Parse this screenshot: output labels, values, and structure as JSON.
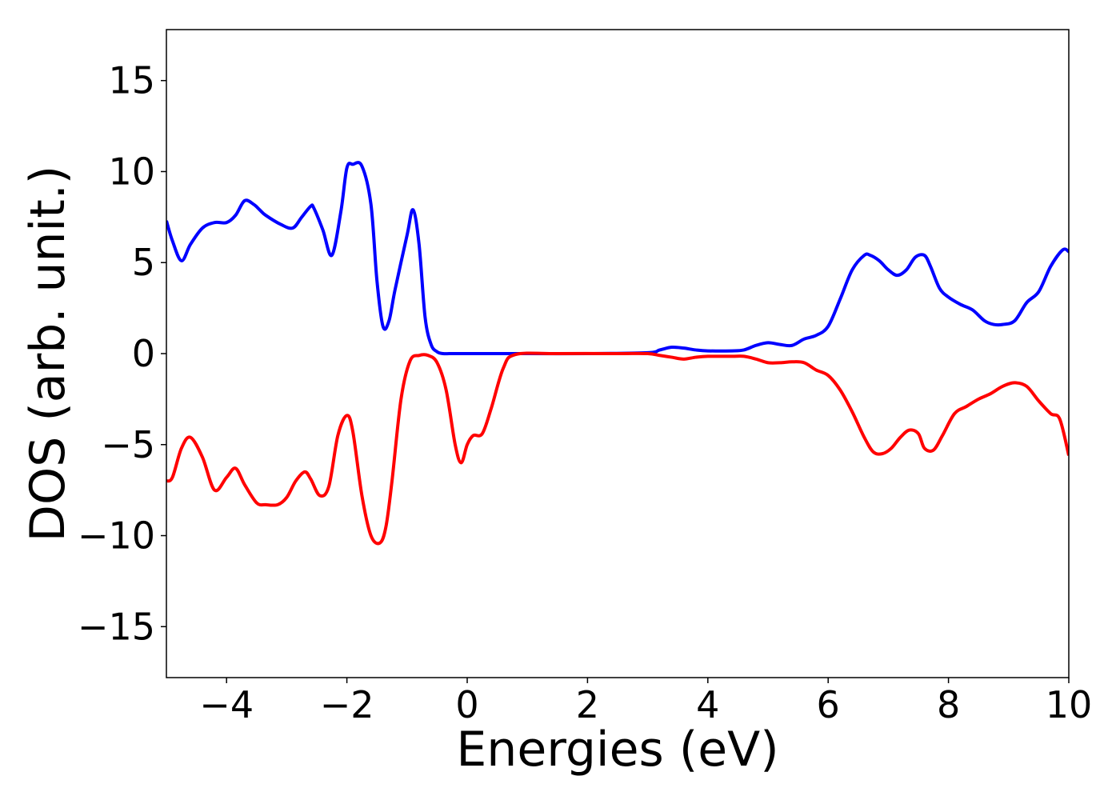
{
  "chart_data": {
    "type": "line",
    "title": "",
    "xlabel": "Energies (eV)",
    "ylabel": "DOS (arb. unit.)",
    "xlim": [
      -5,
      10
    ],
    "ylim": [
      -17.8,
      17.8
    ],
    "xticks": [
      -4,
      -2,
      0,
      2,
      4,
      6,
      8,
      10
    ],
    "yticks": [
      -15,
      -10,
      -5,
      0,
      5,
      10,
      15
    ],
    "xtick_labels": [
      "−4",
      "−2",
      "0",
      "2",
      "4",
      "6",
      "8",
      "10"
    ],
    "ytick_labels": [
      "−15",
      "−10",
      "−5",
      "0",
      "5",
      "10",
      "15"
    ],
    "grid": false,
    "legend": "none",
    "series": [
      {
        "color": "#0000ff",
        "x": [
          -5.0,
          -4.9,
          -4.75,
          -4.6,
          -4.4,
          -4.2,
          -4.0,
          -3.85,
          -3.7,
          -3.55,
          -3.45,
          -3.35,
          -3.1,
          -2.9,
          -2.75,
          -2.6,
          -2.55,
          -2.4,
          -2.25,
          -2.1,
          -2.0,
          -1.9,
          -1.75,
          -1.6,
          -1.5,
          -1.4,
          -1.3,
          -1.2,
          -1.0,
          -0.9,
          -0.8,
          -0.7,
          -0.6,
          -0.5,
          -0.4,
          -0.3,
          -0.2,
          -0.1,
          0.0,
          1.0,
          2.0,
          3.0,
          3.2,
          3.4,
          3.6,
          3.8,
          4.0,
          4.4,
          4.6,
          4.8,
          5.0,
          5.2,
          5.4,
          5.6,
          5.8,
          6.0,
          6.2,
          6.4,
          6.6,
          6.7,
          6.85,
          7.0,
          7.15,
          7.3,
          7.45,
          7.6,
          7.7,
          7.85,
          8.0,
          8.2,
          8.4,
          8.6,
          8.75,
          8.9,
          9.1,
          9.3,
          9.5,
          9.7,
          9.9,
          10.0
        ],
        "y": [
          7.3,
          6.2,
          5.1,
          6.0,
          6.9,
          7.2,
          7.2,
          7.6,
          8.4,
          8.2,
          7.9,
          7.6,
          7.1,
          6.9,
          7.5,
          8.1,
          8.0,
          6.8,
          5.4,
          7.8,
          10.2,
          10.4,
          10.3,
          8.2,
          4.0,
          1.5,
          1.8,
          3.5,
          6.5,
          7.9,
          6.0,
          2.0,
          0.5,
          0.1,
          0.0,
          0.0,
          0.0,
          0.0,
          0.0,
          0.0,
          0.0,
          0.05,
          0.2,
          0.35,
          0.3,
          0.2,
          0.15,
          0.15,
          0.2,
          0.45,
          0.6,
          0.5,
          0.45,
          0.8,
          1.0,
          1.5,
          3.0,
          4.6,
          5.4,
          5.4,
          5.1,
          4.6,
          4.3,
          4.6,
          5.3,
          5.4,
          4.8,
          3.6,
          3.1,
          2.7,
          2.4,
          1.8,
          1.6,
          1.6,
          1.8,
          2.8,
          3.4,
          4.8,
          5.7,
          5.6
        ]
      },
      {
        "color": "#ff0000",
        "x": [
          -5.0,
          -4.9,
          -4.75,
          -4.6,
          -4.4,
          -4.2,
          -4.0,
          -3.85,
          -3.7,
          -3.5,
          -3.35,
          -3.15,
          -3.0,
          -2.85,
          -2.7,
          -2.6,
          -2.45,
          -2.3,
          -2.15,
          -2.0,
          -1.9,
          -1.75,
          -1.6,
          -1.45,
          -1.35,
          -1.25,
          -1.1,
          -0.95,
          -0.8,
          -0.65,
          -0.5,
          -0.35,
          -0.2,
          -0.1,
          0.0,
          0.1,
          0.25,
          0.4,
          0.6,
          0.8,
          1.5,
          2.5,
          3.0,
          3.2,
          3.4,
          3.6,
          3.8,
          4.0,
          4.4,
          4.6,
          4.8,
          5.0,
          5.2,
          5.4,
          5.6,
          5.8,
          6.0,
          6.2,
          6.4,
          6.6,
          6.75,
          6.9,
          7.05,
          7.2,
          7.35,
          7.5,
          7.6,
          7.75,
          7.9,
          8.1,
          8.3,
          8.5,
          8.7,
          8.9,
          9.1,
          9.3,
          9.5,
          9.7,
          9.85,
          10.0
        ],
        "y": [
          -7.0,
          -6.8,
          -5.2,
          -4.6,
          -5.7,
          -7.5,
          -6.8,
          -6.3,
          -7.2,
          -8.2,
          -8.3,
          -8.3,
          -7.9,
          -7.0,
          -6.5,
          -6.9,
          -7.8,
          -7.3,
          -4.5,
          -3.4,
          -4.3,
          -7.8,
          -10.0,
          -10.4,
          -9.5,
          -7.0,
          -2.5,
          -0.4,
          -0.1,
          -0.1,
          -0.5,
          -2.0,
          -5.0,
          -6.0,
          -5.0,
          -4.5,
          -4.4,
          -3.0,
          -0.8,
          -0.05,
          0.0,
          0.0,
          0.0,
          -0.1,
          -0.2,
          -0.3,
          -0.2,
          -0.15,
          -0.15,
          -0.15,
          -0.3,
          -0.5,
          -0.5,
          -0.45,
          -0.5,
          -0.9,
          -1.2,
          -2.0,
          -3.2,
          -4.6,
          -5.4,
          -5.5,
          -5.2,
          -4.6,
          -4.2,
          -4.4,
          -5.2,
          -5.3,
          -4.5,
          -3.3,
          -2.9,
          -2.5,
          -2.2,
          -1.8,
          -1.6,
          -1.8,
          -2.6,
          -3.3,
          -3.6,
          -5.6
        ]
      }
    ]
  }
}
